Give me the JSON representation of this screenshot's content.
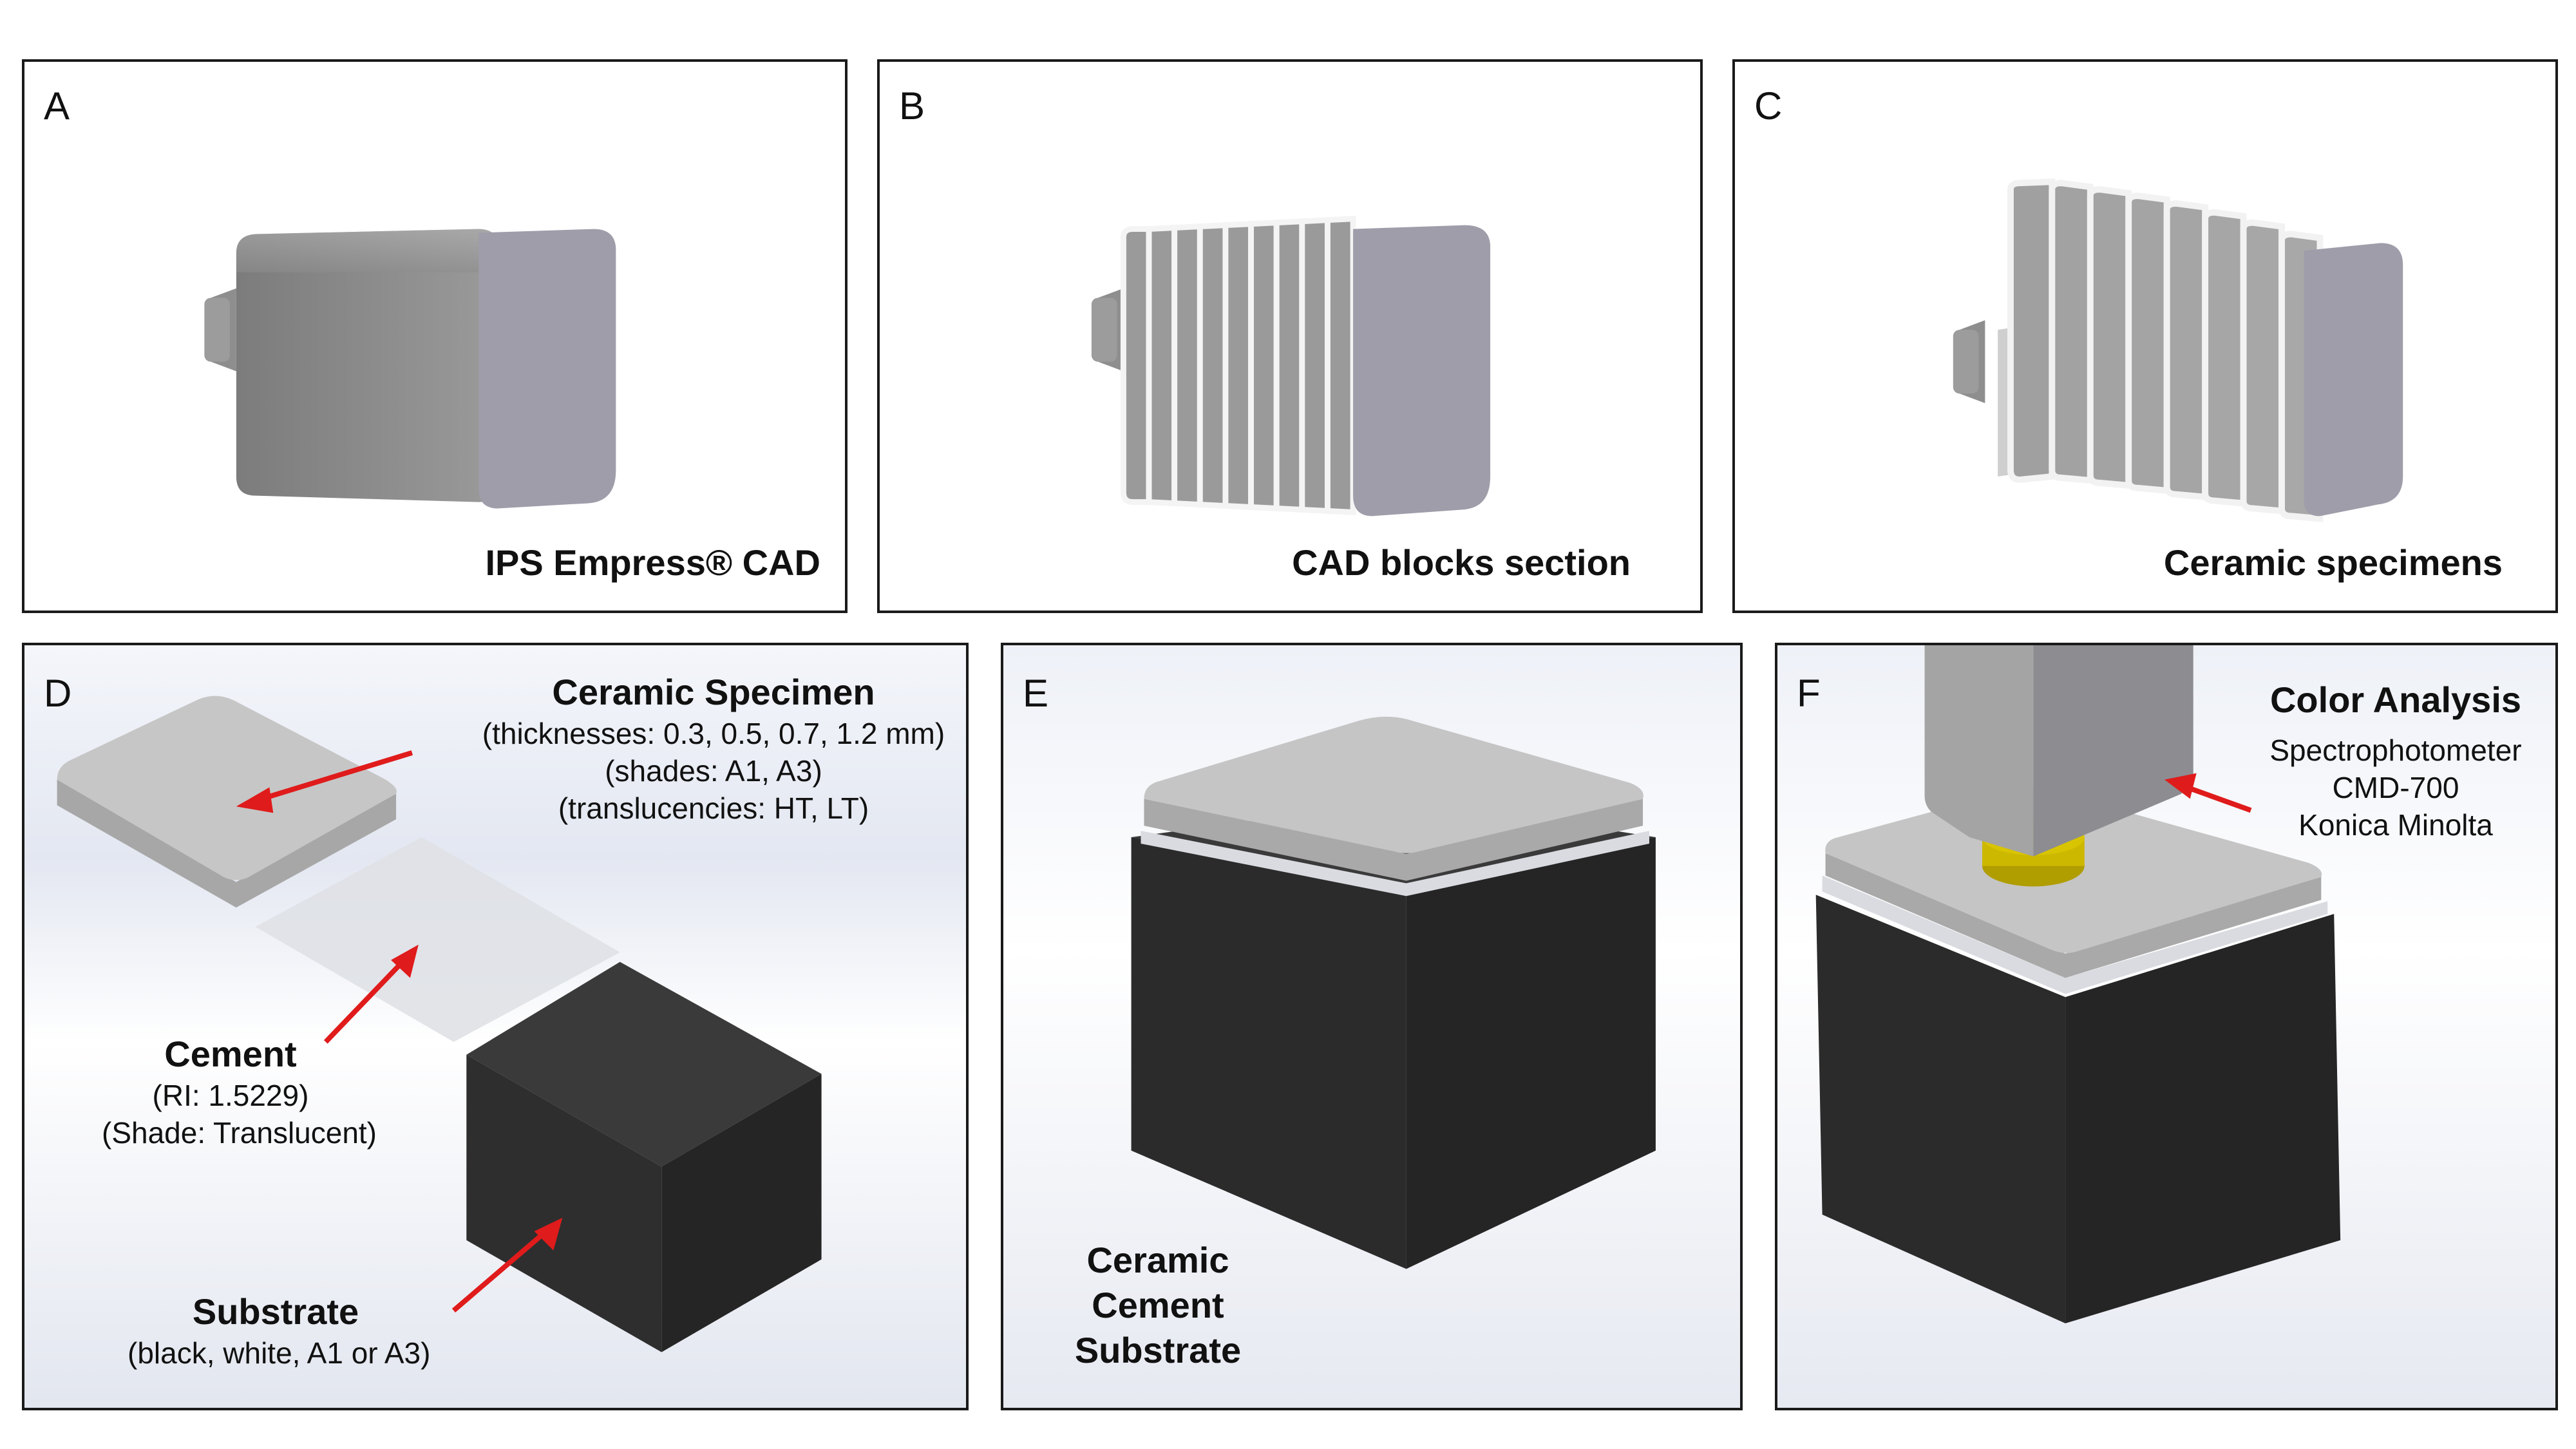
{
  "panels": {
    "A": {
      "letter": "A",
      "caption": "IPS Empress® CAD"
    },
    "B": {
      "letter": "B",
      "caption": "CAD blocks section"
    },
    "C": {
      "letter": "C",
      "caption": "Ceramic specimens"
    },
    "D": {
      "letter": "D",
      "specimen": {
        "title": "Ceramic Specimen",
        "lines": [
          "(thicknesses: 0.3, 0.5, 0.7, 1.2 mm)",
          "(shades: A1, A3)",
          "(translucencies: HT, LT)"
        ]
      },
      "cement": {
        "title": "Cement",
        "lines": [
          "(RI: 1.5229)",
          "(Shade: Translucent)"
        ]
      },
      "substrate": {
        "title": "Substrate",
        "lines": [
          "(black, white, A1 or A3)"
        ]
      }
    },
    "E": {
      "letter": "E",
      "labels": [
        "Ceramic",
        "Cement",
        "Substrate"
      ]
    },
    "F": {
      "letter": "F",
      "title": "Color Analysis",
      "lines": [
        "Spectrophotometer",
        "CMD-700",
        "Konica Minolta"
      ]
    }
  },
  "colors": {
    "arrow": "#e01b1b",
    "block_front": "#9d9ba6",
    "block_body": "#8a8a8a",
    "substrate": "#2b2b2b",
    "specimen": "#c4c4c4",
    "lens": "#c9b400"
  }
}
